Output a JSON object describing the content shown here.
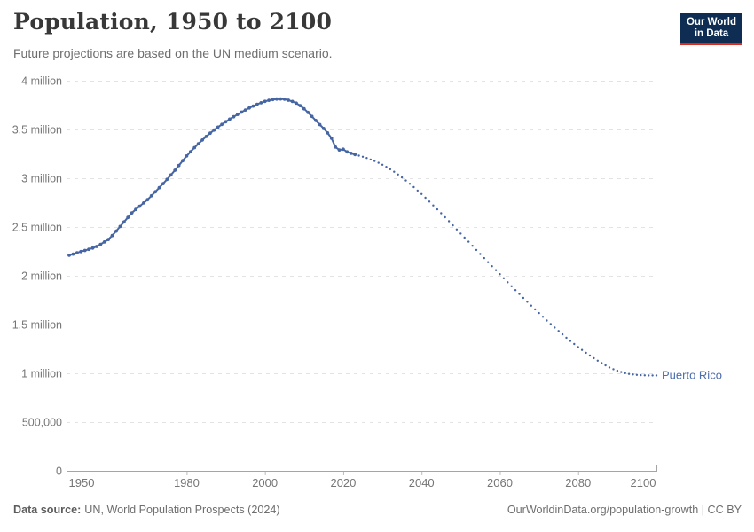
{
  "header": {
    "title": "Population, 1950 to 2100",
    "subtitle": "Future projections are based on the UN medium scenario.",
    "logo": {
      "line1": "Our World",
      "line2": "in Data",
      "bg_color": "#0F2D52",
      "bar_color": "#DC2C20"
    }
  },
  "footer": {
    "source_label": "Data source:",
    "source_text": "UN, World Population Prospects (2024)",
    "citation_url": "OurWorldinData.org/population-growth",
    "citation_suffix": " | CC BY"
  },
  "chart_data": {
    "type": "line",
    "title": "Population, 1950 to 2100",
    "subtitle": "Future projections are based on the UN medium scenario.",
    "entity_label": "Puerto Rico",
    "xlabel": "",
    "ylabel": "",
    "x_domain": [
      1950,
      2100
    ],
    "y_domain": [
      0,
      4000000
    ],
    "x_ticks": [
      1950,
      1980,
      2000,
      2020,
      2040,
      2060,
      2080,
      2100
    ],
    "y_ticks": [
      {
        "value": 0,
        "label": "0"
      },
      {
        "value": 500000,
        "label": "500,000"
      },
      {
        "value": 1000000,
        "label": "1 million"
      },
      {
        "value": 1500000,
        "label": "1.5 million"
      },
      {
        "value": 2000000,
        "label": "2 million"
      },
      {
        "value": 2500000,
        "label": "2.5 million"
      },
      {
        "value": 3000000,
        "label": "3 million"
      },
      {
        "value": 3500000,
        "label": "3.5 million"
      },
      {
        "value": 4000000,
        "label": "4 million"
      }
    ],
    "grid": true,
    "grid_color": "#e3e3e3",
    "axis_color": "#a5a5a5",
    "line_color": "#4665A3",
    "entity_label_color": "#4C6DAE",
    "series": [
      {
        "name": "historical",
        "style": "solid-markers",
        "points": [
          [
            1950,
            2210000
          ],
          [
            1951,
            2222000
          ],
          [
            1952,
            2235000
          ],
          [
            1953,
            2247000
          ],
          [
            1954,
            2259000
          ],
          [
            1955,
            2271000
          ],
          [
            1956,
            2284000
          ],
          [
            1957,
            2300000
          ],
          [
            1958,
            2322000
          ],
          [
            1959,
            2346000
          ],
          [
            1960,
            2372000
          ],
          [
            1961,
            2412000
          ],
          [
            1962,
            2458000
          ],
          [
            1963,
            2505000
          ],
          [
            1964,
            2552000
          ],
          [
            1965,
            2598000
          ],
          [
            1966,
            2645000
          ],
          [
            1967,
            2680000
          ],
          [
            1968,
            2713000
          ],
          [
            1969,
            2746000
          ],
          [
            1970,
            2780000
          ],
          [
            1971,
            2820000
          ],
          [
            1972,
            2861000
          ],
          [
            1973,
            2903000
          ],
          [
            1974,
            2945000
          ],
          [
            1975,
            2988000
          ],
          [
            1976,
            3034000
          ],
          [
            1977,
            3082000
          ],
          [
            1978,
            3130000
          ],
          [
            1979,
            3180000
          ],
          [
            1980,
            3228000
          ],
          [
            1981,
            3272000
          ],
          [
            1982,
            3314000
          ],
          [
            1983,
            3354000
          ],
          [
            1984,
            3392000
          ],
          [
            1985,
            3428000
          ],
          [
            1986,
            3462000
          ],
          [
            1987,
            3494000
          ],
          [
            1988,
            3524000
          ],
          [
            1989,
            3552000
          ],
          [
            1990,
            3579000
          ],
          [
            1991,
            3605000
          ],
          [
            1992,
            3630000
          ],
          [
            1993,
            3654000
          ],
          [
            1994,
            3677000
          ],
          [
            1995,
            3699000
          ],
          [
            1996,
            3720000
          ],
          [
            1997,
            3740000
          ],
          [
            1998,
            3758000
          ],
          [
            1999,
            3774000
          ],
          [
            2000,
            3788000
          ],
          [
            2001,
            3799000
          ],
          [
            2002,
            3807000
          ],
          [
            2003,
            3812000
          ],
          [
            2004,
            3813000
          ],
          [
            2005,
            3810000
          ],
          [
            2006,
            3800000
          ],
          [
            2007,
            3787000
          ],
          [
            2008,
            3770000
          ],
          [
            2009,
            3745000
          ],
          [
            2010,
            3712000
          ],
          [
            2011,
            3675000
          ],
          [
            2012,
            3634000
          ],
          [
            2013,
            3592000
          ],
          [
            2014,
            3550000
          ],
          [
            2015,
            3510000
          ],
          [
            2016,
            3465000
          ],
          [
            2017,
            3410000
          ],
          [
            2018,
            3320000
          ],
          [
            2019,
            3290000
          ],
          [
            2020,
            3297000
          ],
          [
            2021,
            3270000
          ],
          [
            2022,
            3255000
          ],
          [
            2023,
            3243000
          ]
        ]
      },
      {
        "name": "projection",
        "style": "dotted",
        "points": [
          [
            2023,
            3243000
          ],
          [
            2024,
            3232000
          ],
          [
            2025,
            3220000
          ],
          [
            2026,
            3207000
          ],
          [
            2027,
            3192000
          ],
          [
            2028,
            3176000
          ],
          [
            2029,
            3158000
          ],
          [
            2030,
            3138000
          ],
          [
            2031,
            3116000
          ],
          [
            2032,
            3092000
          ],
          [
            2033,
            3066000
          ],
          [
            2034,
            3038000
          ],
          [
            2035,
            3008000
          ],
          [
            2036,
            2976000
          ],
          [
            2037,
            2943000
          ],
          [
            2038,
            2909000
          ],
          [
            2039,
            2874000
          ],
          [
            2040,
            2838000
          ],
          [
            2041,
            2800000
          ],
          [
            2042,
            2761000
          ],
          [
            2043,
            2721000
          ],
          [
            2044,
            2681000
          ],
          [
            2045,
            2641000
          ],
          [
            2046,
            2600000
          ],
          [
            2047,
            2559000
          ],
          [
            2048,
            2517000
          ],
          [
            2049,
            2475000
          ],
          [
            2050,
            2433000
          ],
          [
            2051,
            2391000
          ],
          [
            2052,
            2349000
          ],
          [
            2053,
            2307000
          ],
          [
            2054,
            2265000
          ],
          [
            2055,
            2223000
          ],
          [
            2056,
            2181000
          ],
          [
            2057,
            2139000
          ],
          [
            2058,
            2098000
          ],
          [
            2059,
            2057000
          ],
          [
            2060,
            2016000
          ],
          [
            2061,
            1975000
          ],
          [
            2062,
            1934000
          ],
          [
            2063,
            1893000
          ],
          [
            2064,
            1853000
          ],
          [
            2065,
            1813000
          ],
          [
            2066,
            1773000
          ],
          [
            2067,
            1733000
          ],
          [
            2068,
            1694000
          ],
          [
            2069,
            1655000
          ],
          [
            2070,
            1617000
          ],
          [
            2071,
            1579000
          ],
          [
            2072,
            1541000
          ],
          [
            2073,
            1505000
          ],
          [
            2074,
            1469000
          ],
          [
            2075,
            1434000
          ],
          [
            2076,
            1399000
          ],
          [
            2077,
            1365000
          ],
          [
            2078,
            1332000
          ],
          [
            2079,
            1300000
          ],
          [
            2080,
            1269000
          ],
          [
            2081,
            1239000
          ],
          [
            2082,
            1210000
          ],
          [
            2083,
            1182000
          ],
          [
            2084,
            1155000
          ],
          [
            2085,
            1129000
          ],
          [
            2086,
            1105000
          ],
          [
            2087,
            1082000
          ],
          [
            2088,
            1060000
          ],
          [
            2089,
            1042000
          ],
          [
            2090,
            1026000
          ],
          [
            2091,
            1013000
          ],
          [
            2092,
            1002000
          ],
          [
            2093,
            994000
          ],
          [
            2094,
            988000
          ],
          [
            2095,
            984000
          ],
          [
            2096,
            981000
          ],
          [
            2097,
            979000
          ],
          [
            2098,
            978000
          ],
          [
            2099,
            978000
          ],
          [
            2100,
            978000
          ]
        ]
      }
    ]
  }
}
